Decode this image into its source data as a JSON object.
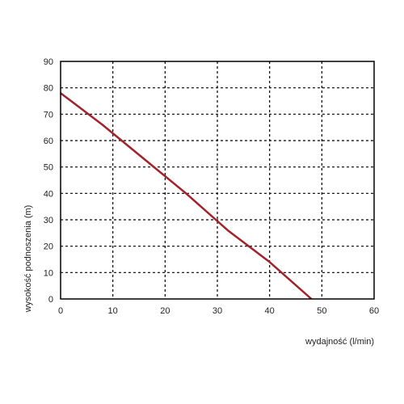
{
  "chart_data": {
    "type": "line",
    "xlabel": "wydajność (l/min)",
    "ylabel": "wysokość podnoszenia (m)",
    "xlim": [
      0,
      60
    ],
    "ylim": [
      0,
      90
    ],
    "xticks": [
      "0",
      "10",
      "20",
      "30",
      "40",
      "50",
      "60"
    ],
    "yticks": [
      "0",
      "10",
      "20",
      "30",
      "40",
      "50",
      "60",
      "70",
      "80",
      "90"
    ],
    "grid": true,
    "grid_style": "dashed",
    "series": [
      {
        "color": "#a3222a",
        "points": [
          [
            0,
            78
          ],
          [
            8,
            66
          ],
          [
            16,
            53
          ],
          [
            24,
            40
          ],
          [
            32,
            26
          ],
          [
            40,
            14
          ],
          [
            48,
            0
          ]
        ]
      }
    ]
  }
}
